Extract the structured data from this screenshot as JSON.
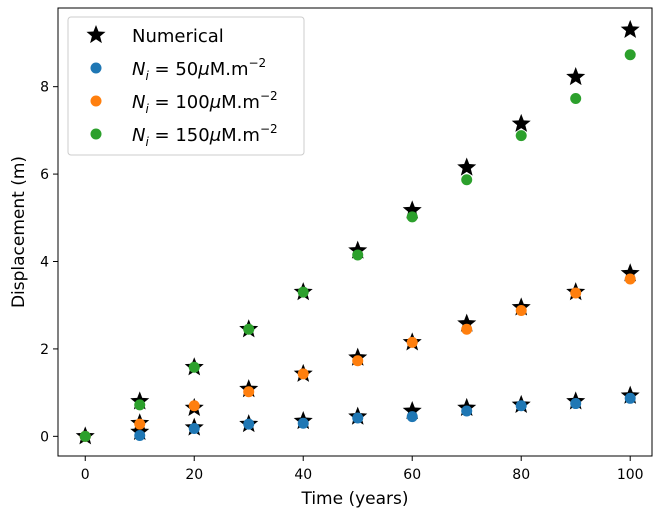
{
  "chart_data": {
    "type": "scatter",
    "xlabel": "Time (years)",
    "ylabel": "Displacement (m)",
    "xlim": [
      -5,
      104
    ],
    "ylim": [
      -0.45,
      9.8
    ],
    "xticks": [
      0,
      20,
      40,
      60,
      80,
      100
    ],
    "yticks": [
      0,
      2,
      4,
      6,
      8
    ],
    "grid": false,
    "legend_position": "top-left",
    "series": [
      {
        "name": "Numerical",
        "marker": "star",
        "color": "#000000",
        "x": [
          0,
          10,
          20,
          30,
          40,
          50,
          60,
          70,
          80,
          90,
          100,
          10,
          20,
          30,
          40,
          50,
          60,
          70,
          80,
          90,
          100,
          10,
          20,
          30,
          40,
          50,
          60,
          70,
          80,
          90,
          100
        ],
        "y": [
          0.0,
          0.1,
          0.2,
          0.28,
          0.35,
          0.45,
          0.58,
          0.65,
          0.72,
          0.8,
          0.93,
          0.3,
          0.65,
          1.08,
          1.43,
          1.8,
          2.15,
          2.58,
          2.95,
          3.3,
          3.73,
          0.8,
          1.58,
          2.45,
          3.3,
          4.25,
          5.17,
          6.15,
          7.15,
          8.22,
          9.3
        ]
      },
      {
        "name": "N_i = 50μM.m^-2",
        "legend_parts": [
          "N",
          "i",
          " = 50",
          "μ",
          "M.m",
          "−2"
        ],
        "marker": "circle",
        "color": "#1f77b4",
        "x": [
          0,
          10,
          20,
          30,
          40,
          50,
          60,
          70,
          80,
          90,
          100
        ],
        "y": [
          0.0,
          0.02,
          0.18,
          0.28,
          0.3,
          0.42,
          0.45,
          0.58,
          0.7,
          0.75,
          0.87
        ]
      },
      {
        "name": "N_i = 100μM.m^-2",
        "legend_parts": [
          "N",
          "i",
          " = 100",
          "μ",
          "M.m",
          "−2"
        ],
        "marker": "circle",
        "color": "#ff7f0e",
        "x": [
          0,
          10,
          20,
          30,
          40,
          50,
          60,
          70,
          80,
          90,
          100
        ],
        "y": [
          0.0,
          0.28,
          0.7,
          1.02,
          1.43,
          1.73,
          2.15,
          2.45,
          2.88,
          3.28,
          3.6
        ]
      },
      {
        "name": "N_i = 150μM.m^-2",
        "legend_parts": [
          "N",
          "i",
          " = 150",
          "μ",
          "M.m",
          "−2"
        ],
        "marker": "circle",
        "color": "#2ca02c",
        "x": [
          0,
          10,
          20,
          30,
          40,
          50,
          60,
          70,
          80,
          90,
          100
        ],
        "y": [
          0.0,
          0.72,
          1.58,
          2.45,
          3.3,
          4.15,
          5.02,
          5.87,
          6.88,
          7.73,
          8.73
        ]
      }
    ]
  }
}
